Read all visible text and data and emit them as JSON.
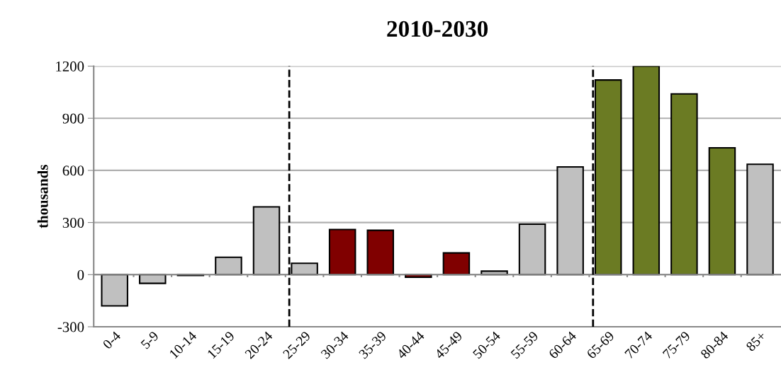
{
  "chart_data": {
    "type": "bar",
    "title": "2010-2030",
    "ylabel": "thousands",
    "categories": [
      "0-4",
      "5-9",
      "10-14",
      "15-19",
      "20-24",
      "25-29",
      "30-34",
      "35-39",
      "40-44",
      "45-49",
      "50-54",
      "55-59",
      "60-64",
      "65-69",
      "70-74",
      "75-79",
      "80-84",
      "85+"
    ],
    "values": [
      -180,
      -50,
      -5,
      100,
      390,
      65,
      260,
      255,
      -15,
      125,
      20,
      290,
      620,
      1120,
      1200,
      1040,
      730,
      635
    ],
    "colors": [
      "#c0c0c0",
      "#c0c0c0",
      "#c0c0c0",
      "#c0c0c0",
      "#c0c0c0",
      "#c0c0c0",
      "#800000",
      "#800000",
      "#800000",
      "#800000",
      "#c0c0c0",
      "#c0c0c0",
      "#c0c0c0",
      "#6b7b23",
      "#6b7b23",
      "#6b7b23",
      "#6b7b23",
      "#c0c0c0"
    ],
    "ylim": [
      -300,
      1200
    ],
    "yticks": [
      -300,
      0,
      300,
      600,
      900,
      1200
    ],
    "grid": "y",
    "ref_lines": [
      {
        "axis": "x",
        "value": "25-29",
        "color": "#000000",
        "line_style": "dashed"
      },
      {
        "axis": "x",
        "value": "65-69",
        "color": "#000000",
        "line_style": "dashed"
      }
    ]
  }
}
